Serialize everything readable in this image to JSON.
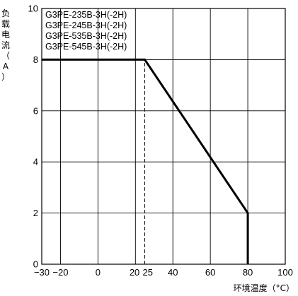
{
  "chart_data": {
    "type": "line",
    "title": "",
    "legend": [
      "G3PE-235B-3H(-2H)",
      "G3PE-245B-3H(-2H)",
      "G3PE-535B-3H(-2H)",
      "G3PE-545B-3H(-2H)"
    ],
    "legend_position": "top-left",
    "xlabel": "环境温度（°C）",
    "ylabel_chars": [
      "负",
      "载",
      "电",
      "流",
      "（",
      "A",
      "）"
    ],
    "xlim": [
      -30,
      100
    ],
    "ylim": [
      0,
      10
    ],
    "grid": true,
    "xticks": [
      {
        "value": -30,
        "label": "−30"
      },
      {
        "value": -20,
        "label": "−20"
      },
      {
        "value": 0,
        "label": "0"
      },
      {
        "value": 20,
        "label": "20"
      },
      {
        "value": 25,
        "label": "25"
      },
      {
        "value": 40,
        "label": "40"
      },
      {
        "value": 60,
        "label": "60"
      },
      {
        "value": 80,
        "label": "80"
      },
      {
        "value": 100,
        "label": "100"
      }
    ],
    "x_gridlines": [
      -20,
      0,
      20,
      40,
      60,
      80
    ],
    "yticks": [
      {
        "value": 0,
        "label": "0"
      },
      {
        "value": 2,
        "label": "2"
      },
      {
        "value": 4,
        "label": "4"
      },
      {
        "value": 6,
        "label": "6"
      },
      {
        "value": 8,
        "label": "8"
      },
      {
        "value": 10,
        "label": "10"
      }
    ],
    "reference_line": {
      "x": 25,
      "y_from": 0,
      "y_to": 8,
      "style": "dashed"
    },
    "series": [
      {
        "points": [
          {
            "x": -30,
            "y": 8
          },
          {
            "x": 25,
            "y": 8
          },
          {
            "x": 80,
            "y": 2
          },
          {
            "x": 80,
            "y": 0
          }
        ],
        "color": "#000000"
      }
    ]
  }
}
